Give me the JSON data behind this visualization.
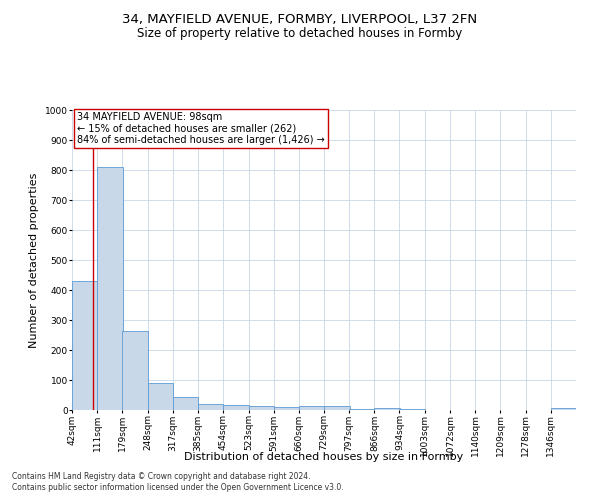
{
  "title1": "34, MAYFIELD AVENUE, FORMBY, LIVERPOOL, L37 2FN",
  "title2": "Size of property relative to detached houses in Formby",
  "xlabel": "Distribution of detached houses by size in Formby",
  "ylabel": "Number of detached properties",
  "bin_edges": [
    42,
    111,
    179,
    248,
    317,
    385,
    454,
    523,
    591,
    660,
    729,
    797,
    866,
    934,
    1003,
    1072,
    1140,
    1209,
    1278,
    1346,
    1415
  ],
  "bar_heights": [
    430,
    810,
    265,
    90,
    43,
    20,
    18,
    13,
    9,
    12,
    13,
    5,
    8,
    3,
    1,
    0,
    0,
    0,
    0,
    8
  ],
  "bar_color": "#c8d8e8",
  "bar_edge_color": "#5b9bd5",
  "property_size": 98,
  "vline_color": "#cc0000",
  "annotation_text": "34 MAYFIELD AVENUE: 98sqm\n← 15% of detached houses are smaller (262)\n84% of semi-detached houses are larger (1,426) →",
  "annotation_box_color": "#ffffff",
  "annotation_box_edge": "#cc0000",
  "ylim": [
    0,
    1000
  ],
  "yticks": [
    0,
    100,
    200,
    300,
    400,
    500,
    600,
    700,
    800,
    900,
    1000
  ],
  "footer1": "Contains HM Land Registry data © Crown copyright and database right 2024.",
  "footer2": "Contains public sector information licensed under the Open Government Licence v3.0.",
  "bg_color": "#ffffff",
  "grid_color": "#c8d8e8",
  "title1_fontsize": 9.5,
  "title2_fontsize": 8.5,
  "tick_fontsize": 6.5,
  "label_fontsize": 8,
  "annotation_fontsize": 7,
  "footer_fontsize": 5.5
}
